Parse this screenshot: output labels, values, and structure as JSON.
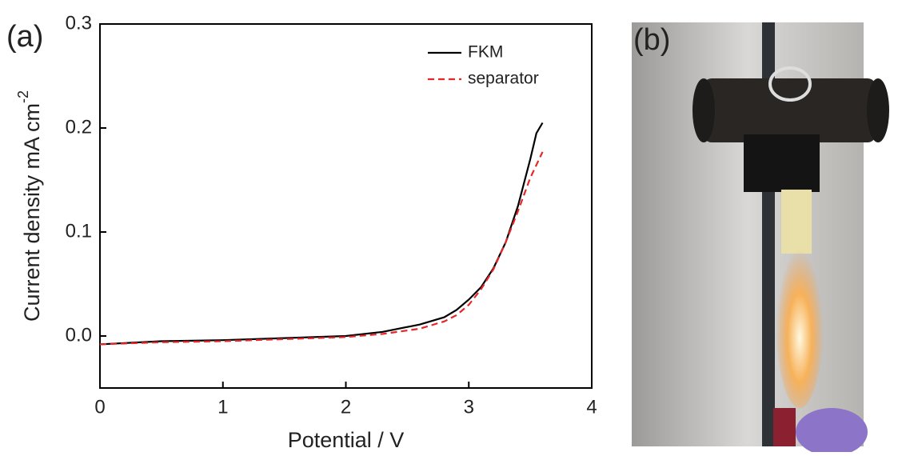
{
  "chart_data": {
    "type": "line",
    "panel_label": "(a)",
    "photo_label": "(b)",
    "x_label": "Potential / V",
    "y_label": "Current density mA cm",
    "y_label_exponent": "-2",
    "xlim": [
      0,
      4
    ],
    "xticks": [
      0,
      1,
      2,
      3,
      4
    ],
    "ylim": [
      -0.05,
      0.3
    ],
    "yticks": [
      {
        "value": 0,
        "label": "0.0"
      },
      0.1,
      0.2,
      0.3
    ],
    "legend": "upper right",
    "series": [
      {
        "name": "FKM",
        "color": "#000000",
        "dash": "solid",
        "x": [
          0,
          0.5,
          1,
          1.5,
          2,
          2.3,
          2.6,
          2.8,
          2.9,
          3.0,
          3.1,
          3.2,
          3.3,
          3.4,
          3.5,
          3.55,
          3.6
        ],
        "values": [
          -0.008,
          -0.005,
          -0.004,
          -0.002,
          0.0,
          0.004,
          0.011,
          0.018,
          0.025,
          0.035,
          0.047,
          0.065,
          0.09,
          0.125,
          0.17,
          0.195,
          0.205
        ]
      },
      {
        "name": "separator",
        "color": "#e8262a",
        "dash": "dashed",
        "x": [
          0,
          0.5,
          1,
          1.5,
          2,
          2.3,
          2.6,
          2.8,
          2.9,
          3.0,
          3.1,
          3.2,
          3.3,
          3.4,
          3.5,
          3.6
        ],
        "values": [
          -0.008,
          -0.006,
          -0.005,
          -0.003,
          -0.001,
          0.002,
          0.007,
          0.014,
          0.02,
          0.03,
          0.045,
          0.064,
          0.09,
          0.12,
          0.152,
          0.177
        ]
      }
    ]
  }
}
